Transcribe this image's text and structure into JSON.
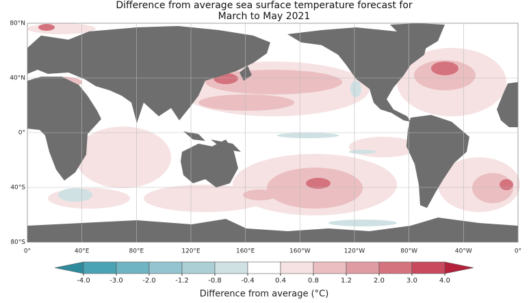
{
  "header": {
    "title": [
      "Difference from average sea surface temperature forecast for",
      "March to May 2021"
    ]
  },
  "map": {
    "lat_labels": [
      "80°N",
      "40°N",
      "0°",
      "40°S",
      "80°S"
    ],
    "lon_labels": [
      "0°",
      "40°E",
      "80°E",
      "120°E",
      "160°E",
      "160°W",
      "120°W",
      "80°W",
      "40°W",
      "0°"
    ]
  },
  "colorbar": {
    "title": "Difference from average (°C)",
    "ticks": [
      {
        "value": -4,
        "label": "-4.0"
      },
      {
        "value": -3,
        "label": "-3.0"
      },
      {
        "value": -2,
        "label": "-2.0"
      },
      {
        "value": -1.2,
        "label": "-1.2"
      },
      {
        "value": -0.8,
        "label": "-0.8"
      },
      {
        "value": -0.4,
        "label": "-0.4"
      },
      {
        "value": 0.4,
        "label": "0.4"
      },
      {
        "value": 0.8,
        "label": "0.8"
      },
      {
        "value": 1.2,
        "label": "1.2"
      },
      {
        "value": 2,
        "label": "2.0"
      },
      {
        "value": 3,
        "label": "3.0"
      },
      {
        "value": 4,
        "label": "4.0"
      }
    ],
    "colors": [
      "#4aa3b5",
      "#6fb4c2",
      "#93c4cf",
      "#abcfd5",
      "#cfe1e3",
      "#ffffff",
      "#f6e2e2",
      "#ebbfc1",
      "#df9ca2",
      "#d4737e",
      "#c84a5c"
    ],
    "under_color": "#2f8a9c",
    "over_color": "#b3213b"
  }
}
